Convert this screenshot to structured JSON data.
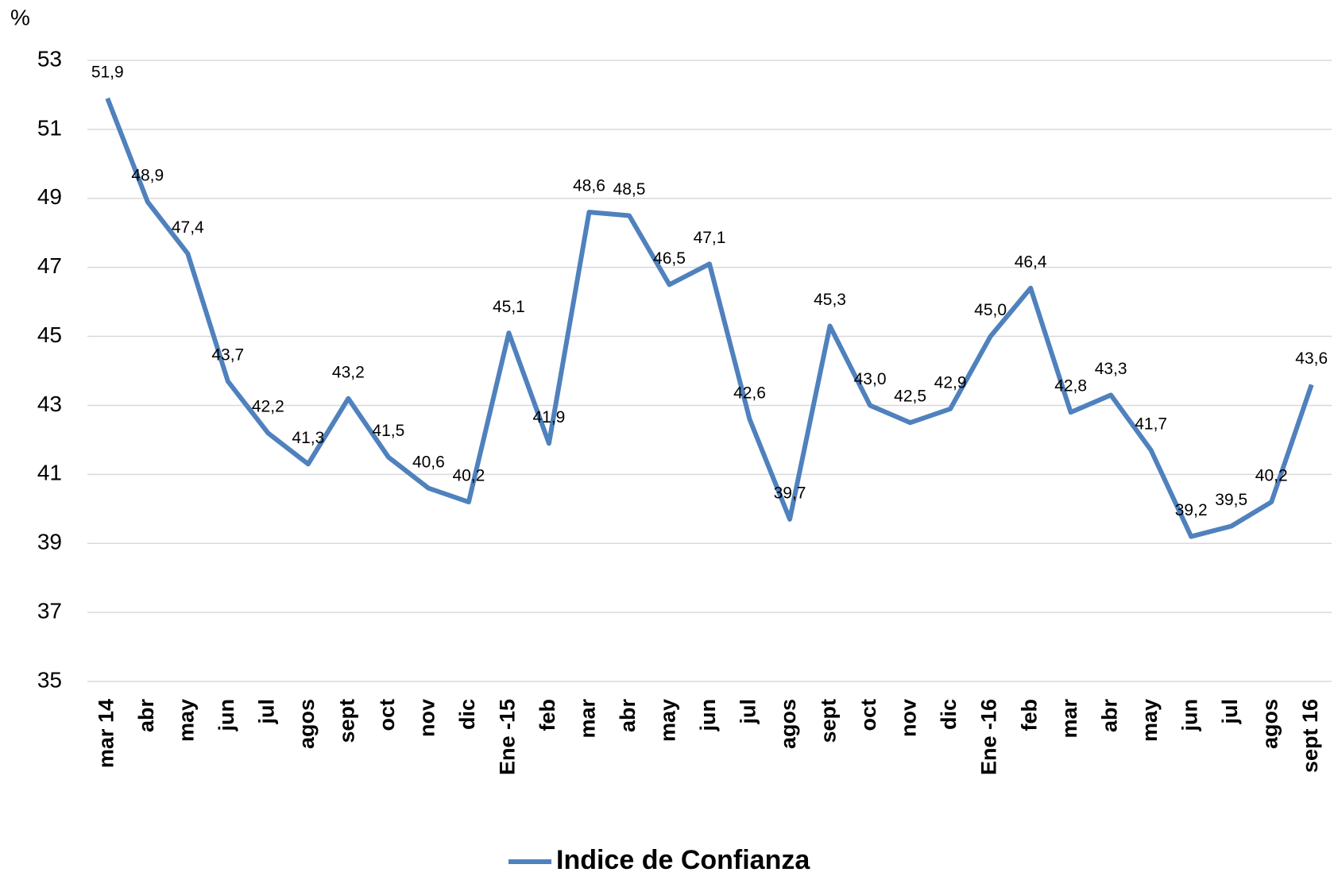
{
  "chart_data": {
    "type": "line",
    "y_label": "%",
    "categories": [
      "mar 14",
      "abr",
      "may",
      "jun",
      "jul",
      "agos",
      "sept",
      "oct",
      "nov",
      "dic",
      "Ene -15",
      "feb",
      "mar",
      "abr",
      "may",
      "jun",
      "jul",
      "agos",
      "sept",
      "oct",
      "nov",
      "dic",
      "Ene -16",
      "feb",
      "mar",
      "abr",
      "may",
      "jun",
      "jul",
      "agos",
      "sept 16"
    ],
    "series": [
      {
        "name": "Indice de Confianza",
        "color": "#4f81bd",
        "values": [
          51.9,
          48.9,
          47.4,
          43.7,
          42.2,
          41.3,
          43.2,
          41.5,
          40.6,
          40.2,
          45.1,
          41.9,
          48.6,
          48.5,
          46.5,
          47.1,
          42.6,
          39.7,
          45.3,
          43.0,
          42.5,
          42.9,
          45.0,
          46.4,
          42.8,
          43.3,
          41.7,
          39.2,
          39.5,
          40.2,
          43.6
        ],
        "value_labels": [
          "51,9",
          "48,9",
          "47,4",
          "43,7",
          "42,2",
          "41,3",
          "43,2",
          "41,5",
          "40,6",
          "40,2",
          "45,1",
          "41,9",
          "48,6",
          "48,5",
          "46,5",
          "47,1",
          "42,6",
          "39,7",
          "45,3",
          "43,0",
          "42,5",
          "42,9",
          "45,0",
          "46,4",
          "42,8",
          "43,3",
          "41,7",
          "39,2",
          "39,5",
          "40,2",
          "43,6"
        ]
      }
    ],
    "ylim": [
      35,
      53
    ],
    "yticks": [
      35,
      37,
      39,
      41,
      43,
      45,
      47,
      49,
      51,
      53
    ],
    "grid": true,
    "legend": "bottom"
  }
}
